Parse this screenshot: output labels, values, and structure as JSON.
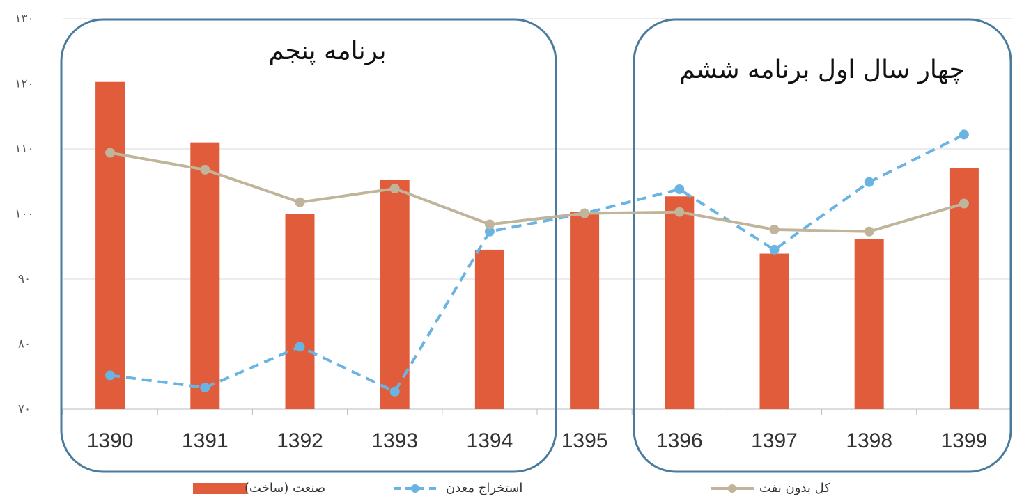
{
  "chart_data": {
    "type": "combo",
    "categories": [
      "1390",
      "1391",
      "1392",
      "1393",
      "1394",
      "1395",
      "1396",
      "1397",
      "1398",
      "1399"
    ],
    "series": [
      {
        "name": "صنعت (ساخت)",
        "type": "bar",
        "color": "#e05c3a",
        "values": [
          120.3,
          111,
          100,
          105.2,
          94.5,
          100.3,
          102.7,
          93.9,
          96.1,
          107.1
        ]
      },
      {
        "name": "استخراج معدن",
        "type": "line",
        "dashed": true,
        "color": "#6ab4e4",
        "values": [
          75.2,
          73.3,
          79.6,
          72.7,
          97.3,
          100.1,
          103.8,
          94.5,
          104.9,
          112.2
        ]
      },
      {
        "name": "کل بدون نفت",
        "type": "line",
        "dashed": false,
        "color": "#c0b49a",
        "values": [
          109.4,
          106.8,
          101.8,
          103.9,
          98.4,
          100.1,
          100.3,
          97.6,
          97.3,
          101.6
        ]
      }
    ],
    "ylim": [
      70,
      130
    ],
    "yticks": [
      {
        "value": 70,
        "label": "۷۰"
      },
      {
        "value": 80,
        "label": "۸۰"
      },
      {
        "value": 90,
        "label": "۹۰"
      },
      {
        "value": 100,
        "label": "۱۰۰"
      },
      {
        "value": 110,
        "label": "۱۱۰"
      },
      {
        "value": 120,
        "label": "۱۲۰"
      },
      {
        "value": 130,
        "label": "۱۳۰"
      }
    ],
    "grid": true,
    "legend": "bottom",
    "annotations": [
      "برنامه پنجم",
      "چهار سال اول برنامه ششم"
    ]
  }
}
